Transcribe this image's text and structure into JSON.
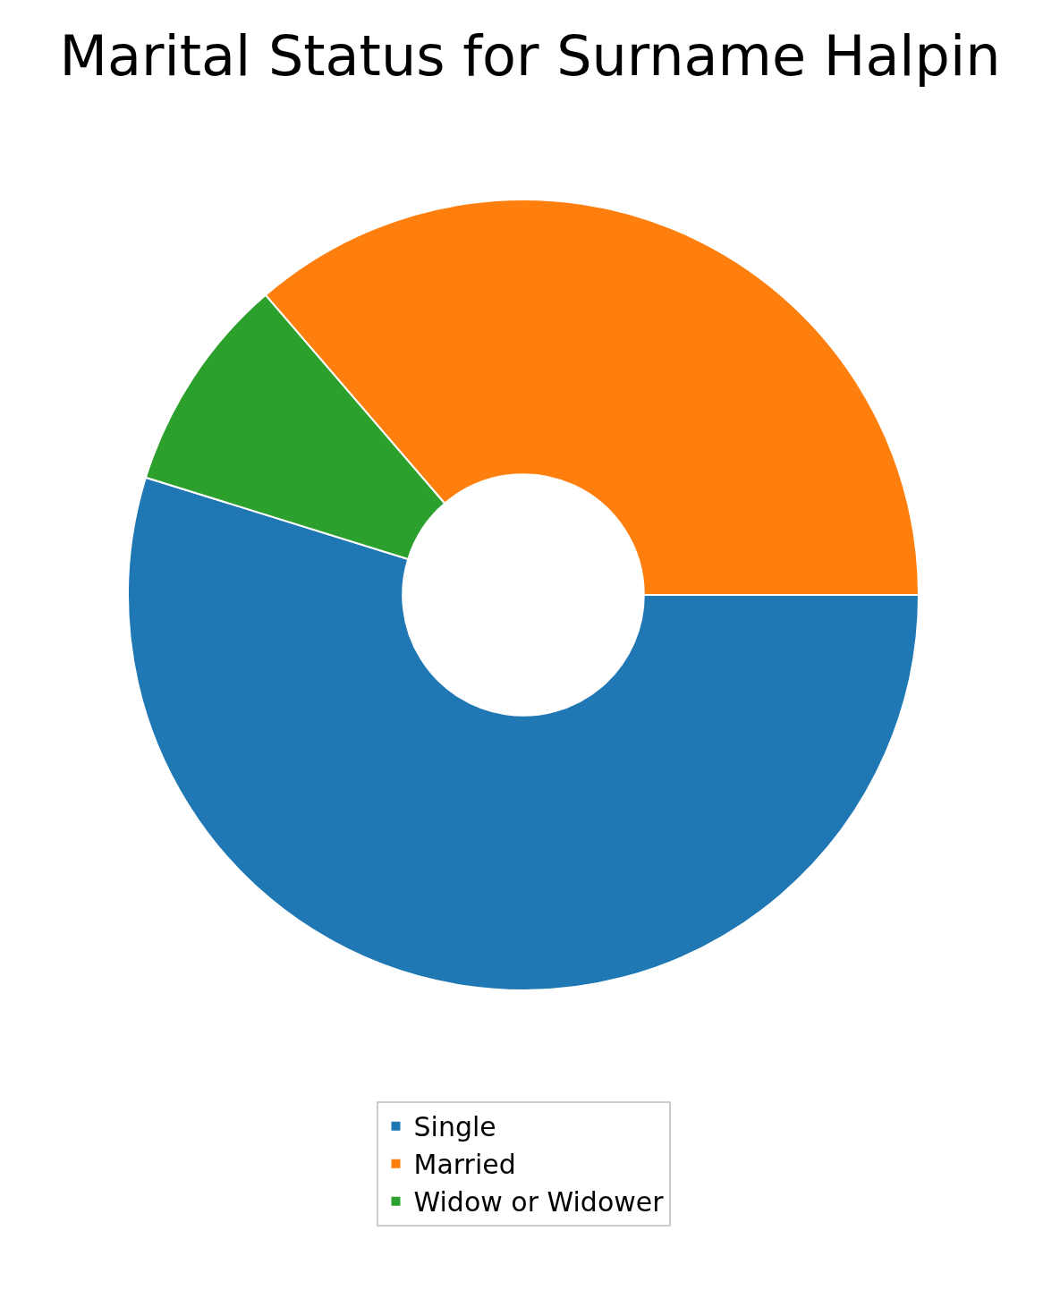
{
  "chart_data": {
    "type": "donut",
    "title": "Marital Status for Surname Halpin",
    "categories": [
      "Single",
      "Married",
      "Widow or Widower"
    ],
    "values": [
      54.8,
      36.3,
      8.9
    ],
    "colors": [
      "#1f77b4",
      "#ff7f0e",
      "#2ca02c"
    ],
    "legend": "bottom"
  }
}
